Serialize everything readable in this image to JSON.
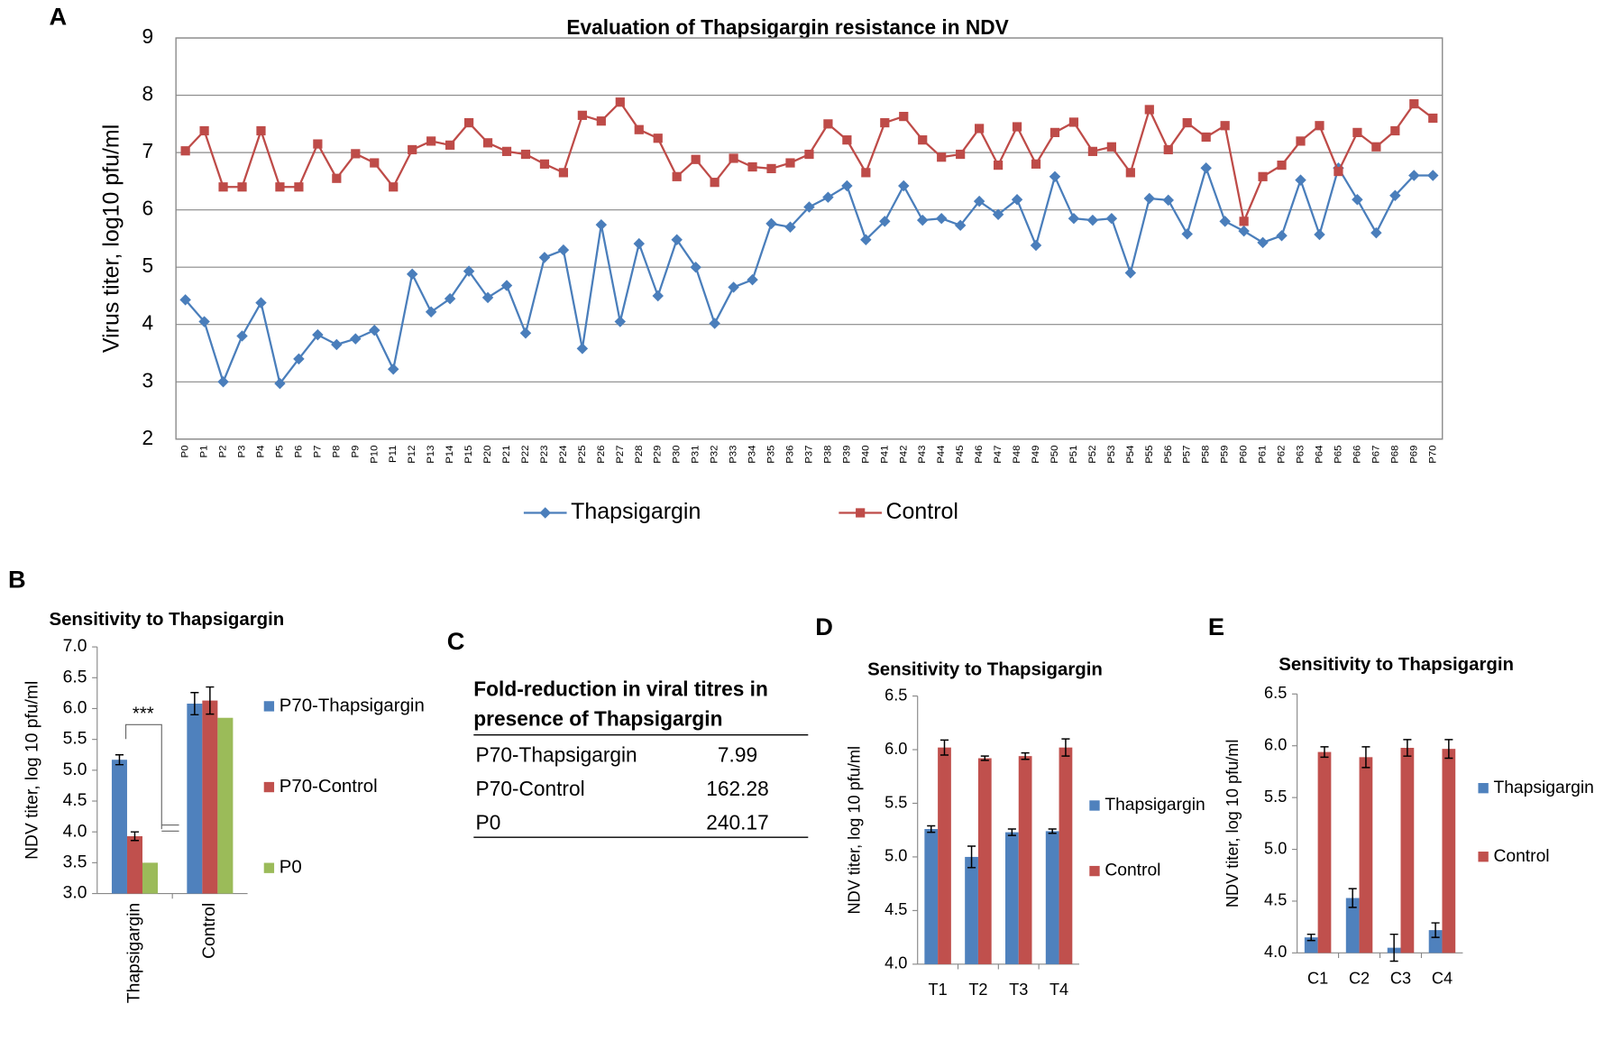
{
  "chart_data": [
    {
      "panel": "A",
      "type": "line",
      "title": "Evaluation of Thapsigargin resistance in NDV",
      "ylabel": "Virus titer, log10 pfu/ml",
      "categories": [
        "P0",
        "P1",
        "P2",
        "P3",
        "P4",
        "P5",
        "P6",
        "P7",
        "P8",
        "P9",
        "P10",
        "P11",
        "P12",
        "P13",
        "P14",
        "P15",
        "P20",
        "P21",
        "P22",
        "P23",
        "P24",
        "P25",
        "P26",
        "P27",
        "P28",
        "P29",
        "P30",
        "P31",
        "P32",
        "P33",
        "P34",
        "P35",
        "P36",
        "P37",
        "P38",
        "P39",
        "P40",
        "P41",
        "P42",
        "P43",
        "P44",
        "P45",
        "P46",
        "P47",
        "P48",
        "P49",
        "P50",
        "P51",
        "P52",
        "P53",
        "P54",
        "P55",
        "P56",
        "P57",
        "P58",
        "P59",
        "P60",
        "P61",
        "P62",
        "P63",
        "P64",
        "P65",
        "P66",
        "P67",
        "P68",
        "P69",
        "P70"
      ],
      "series": [
        {
          "name": "Thapsigargin",
          "color": "#4a7ebb",
          "marker": "diamond",
          "values": [
            4.43,
            4.05,
            3.0,
            3.8,
            4.38,
            2.97,
            3.4,
            3.82,
            3.65,
            3.75,
            3.9,
            3.22,
            4.88,
            4.22,
            4.45,
            4.93,
            4.47,
            4.68,
            3.85,
            5.17,
            5.3,
            3.58,
            5.74,
            4.05,
            5.41,
            4.5,
            5.48,
            5.0,
            4.02,
            4.65,
            4.78,
            5.76,
            5.7,
            6.05,
            6.22,
            6.42,
            5.48,
            5.8,
            6.42,
            5.82,
            5.85,
            5.73,
            6.15,
            5.92,
            6.18,
            5.38,
            6.58,
            5.85,
            5.82,
            5.85,
            4.9,
            6.2,
            6.17,
            5.58,
            6.73,
            5.8,
            5.63,
            5.43,
            5.55,
            6.52,
            5.57,
            6.73,
            6.18,
            5.6,
            6.25,
            6.6,
            6.6
          ]
        },
        {
          "name": "Control",
          "color": "#be4b48",
          "marker": "square",
          "values": [
            7.03,
            7.38,
            6.4,
            6.4,
            7.38,
            6.4,
            6.4,
            7.15,
            6.55,
            6.98,
            6.82,
            6.4,
            7.05,
            7.2,
            7.13,
            7.52,
            7.17,
            7.02,
            6.97,
            6.8,
            6.65,
            7.65,
            7.55,
            7.88,
            7.4,
            7.25,
            6.58,
            6.88,
            6.48,
            6.9,
            6.75,
            6.72,
            6.82,
            6.97,
            7.5,
            7.22,
            6.65,
            7.52,
            7.63,
            7.22,
            6.92,
            6.97,
            7.42,
            6.78,
            7.45,
            6.8,
            7.35,
            7.53,
            7.02,
            7.1,
            6.65,
            7.75,
            7.05,
            7.52,
            7.27,
            7.47,
            5.8,
            6.58,
            6.78,
            7.2,
            7.47,
            6.67,
            7.35,
            7.1,
            7.38,
            7.85,
            7.6
          ]
        }
      ],
      "ylim": [
        2,
        9
      ],
      "yticks": [
        2,
        3,
        4,
        5,
        6,
        7,
        8,
        9
      ],
      "grid": true,
      "legend": "bottom"
    },
    {
      "panel": "B",
      "type": "bar",
      "title": "Sensitivity to Thapsigargin",
      "ylabel": "NDV titer, log 10 pfu/ml",
      "annotation": "***",
      "categories": [
        "Thapsigargin",
        "Control"
      ],
      "series": [
        {
          "name": "P70-Thapsigargin",
          "color": "#4f81bd",
          "values": [
            5.17,
            6.08
          ],
          "errors": [
            0.08,
            0.18
          ]
        },
        {
          "name": "P70-Control",
          "color": "#c0504d",
          "values": [
            3.93,
            6.13
          ],
          "errors": [
            0.07,
            0.22
          ]
        },
        {
          "name": "P0",
          "color": "#9bbb59",
          "values": [
            3.5,
            5.85
          ]
        }
      ],
      "ylim": [
        3,
        7
      ],
      "yticks": [
        {
          "value": 3,
          "label": "3.0"
        },
        {
          "value": 3.5,
          "label": "3.5"
        },
        {
          "value": 4,
          "label": "4.0"
        },
        {
          "value": 4.5,
          "label": "4.5"
        },
        {
          "value": 5,
          "label": "5.0"
        },
        {
          "value": 5.5,
          "label": "5.5"
        },
        {
          "value": 6,
          "label": "6.0"
        },
        {
          "value": 6.5,
          "label": "6.5"
        },
        {
          "value": 7,
          "label": "7.0"
        }
      ],
      "grid": false,
      "legend": "right"
    },
    {
      "panel": "D",
      "type": "bar",
      "title": "Sensitivity to Thapsigargin",
      "ylabel": "NDV titer, log 10 pfu/ml",
      "categories": [
        "T1",
        "T2",
        "T3",
        "T4"
      ],
      "series": [
        {
          "name": "Thapsigargin",
          "color": "#4f81bd",
          "values": [
            5.26,
            5.0,
            5.23,
            5.24
          ],
          "errors": [
            0.03,
            0.1,
            0.03,
            0.02
          ]
        },
        {
          "name": "Control",
          "color": "#c0504d",
          "values": [
            6.02,
            5.92,
            5.94,
            6.02
          ],
          "errors": [
            0.07,
            0.02,
            0.03,
            0.08
          ]
        }
      ],
      "ylim": [
        4,
        6.5
      ],
      "yticks": [
        {
          "value": 4,
          "label": "4.0"
        },
        {
          "value": 4.5,
          "label": "4.5"
        },
        {
          "value": 5,
          "label": "5.0"
        },
        {
          "value": 5.5,
          "label": "5.5"
        },
        {
          "value": 6,
          "label": "6.0"
        },
        {
          "value": 6.5,
          "label": "6.5"
        }
      ],
      "grid": false,
      "legend": "right"
    },
    {
      "panel": "E",
      "type": "bar",
      "title": "Sensitivity to Thapsigargin",
      "ylabel": "NDV titer, log 10 pfu/ml",
      "categories": [
        "C1",
        "C2",
        "C3",
        "C4"
      ],
      "series": [
        {
          "name": "Thapsigargin",
          "color": "#4f81bd",
          "values": [
            4.15,
            4.53,
            4.05,
            4.22
          ],
          "errors": [
            0.03,
            0.09,
            0.13,
            0.07
          ]
        },
        {
          "name": "Control",
          "color": "#c0504d",
          "values": [
            5.94,
            5.89,
            5.98,
            5.97
          ],
          "errors": [
            0.05,
            0.1,
            0.08,
            0.09
          ]
        }
      ],
      "ylim": [
        4,
        6.5
      ],
      "yticks": [
        {
          "value": 4,
          "label": "4.0"
        },
        {
          "value": 4.5,
          "label": "4.5"
        },
        {
          "value": 5,
          "label": "5.0"
        },
        {
          "value": 5.5,
          "label": "5.5"
        },
        {
          "value": 6,
          "label": "6.0"
        },
        {
          "value": 6.5,
          "label": "6.5"
        }
      ],
      "grid": false,
      "legend": "right"
    }
  ],
  "table": {
    "panel": "C",
    "title": "Fold-reduction in viral titres in presence of Thapsigargin",
    "rows": [
      [
        "P70-Thapsigargin",
        7.99
      ],
      [
        "P70-Control",
        162.28
      ],
      [
        "P0",
        240.17
      ]
    ]
  }
}
